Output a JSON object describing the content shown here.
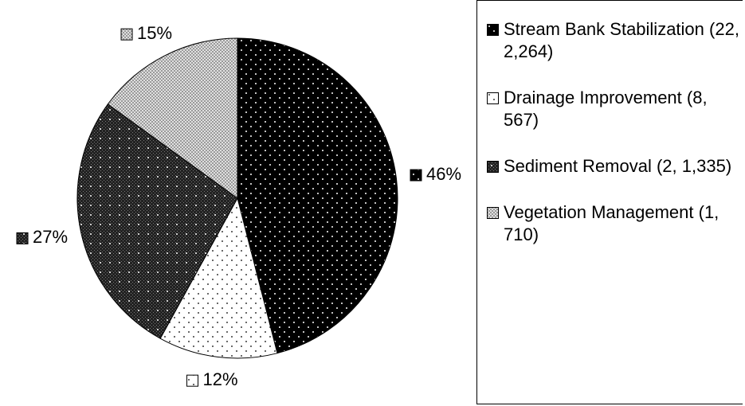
{
  "chart_data": {
    "type": "pie",
    "categories": [
      "Stream Bank Stabilization (22, 2,264)",
      "Drainage Improvement (8, 567)",
      "Sediment Removal (2, 1,335)",
      "Vegetation Management (1, 710)"
    ],
    "values": [
      46,
      12,
      27,
      15
    ],
    "value_labels": [
      "46%",
      "12%",
      "27%",
      "15%"
    ],
    "colors": [
      "#000000",
      "#ffffff",
      "#222222",
      "#9a9a9a"
    ]
  }
}
